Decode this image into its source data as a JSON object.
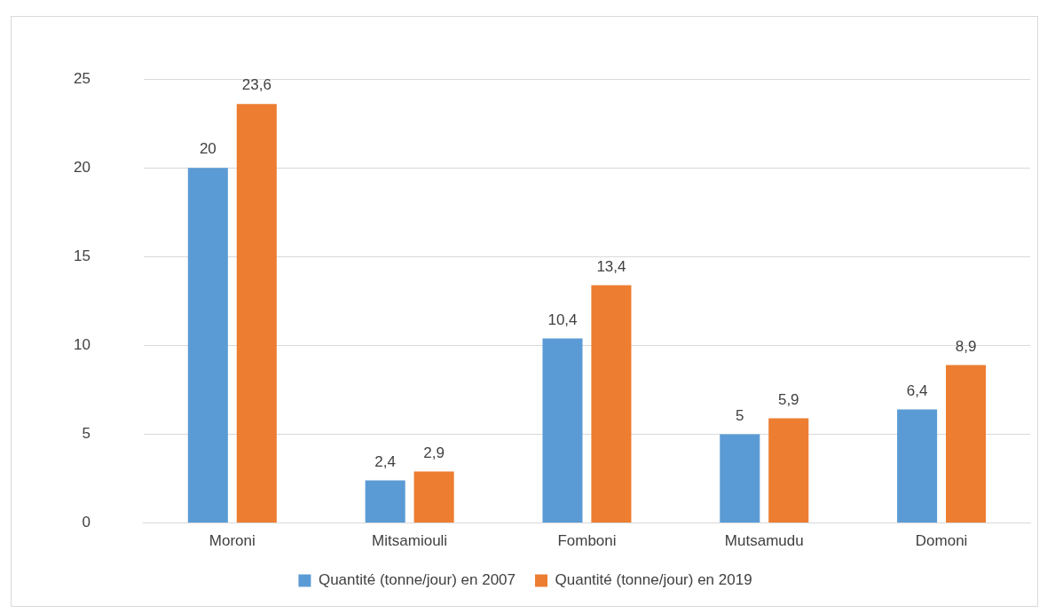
{
  "chart_data": {
    "type": "bar",
    "categories": [
      "Moroni",
      "Mitsamiouli",
      "Fomboni",
      "Mutsamudu",
      "Domoni"
    ],
    "series": [
      {
        "name": "Quantité (tonne/jour) en 2007",
        "color": "#5b9bd5",
        "values": [
          20,
          2.4,
          10.4,
          5,
          6.4
        ],
        "value_labels": [
          "20",
          "2,4",
          "10,4",
          "5",
          "6,4"
        ]
      },
      {
        "name": "Quantité (tonne/jour) en 2019",
        "color": "#ed7d31",
        "values": [
          23.6,
          2.9,
          13.4,
          5.9,
          8.9
        ],
        "value_labels": [
          "23,6",
          "2,9",
          "13,4",
          "5,9",
          "8,9"
        ]
      }
    ],
    "ylim": [
      0,
      25
    ],
    "yticks": [
      0,
      5,
      10,
      15,
      20,
      25
    ],
    "grid": "y",
    "legend": "bottom"
  }
}
